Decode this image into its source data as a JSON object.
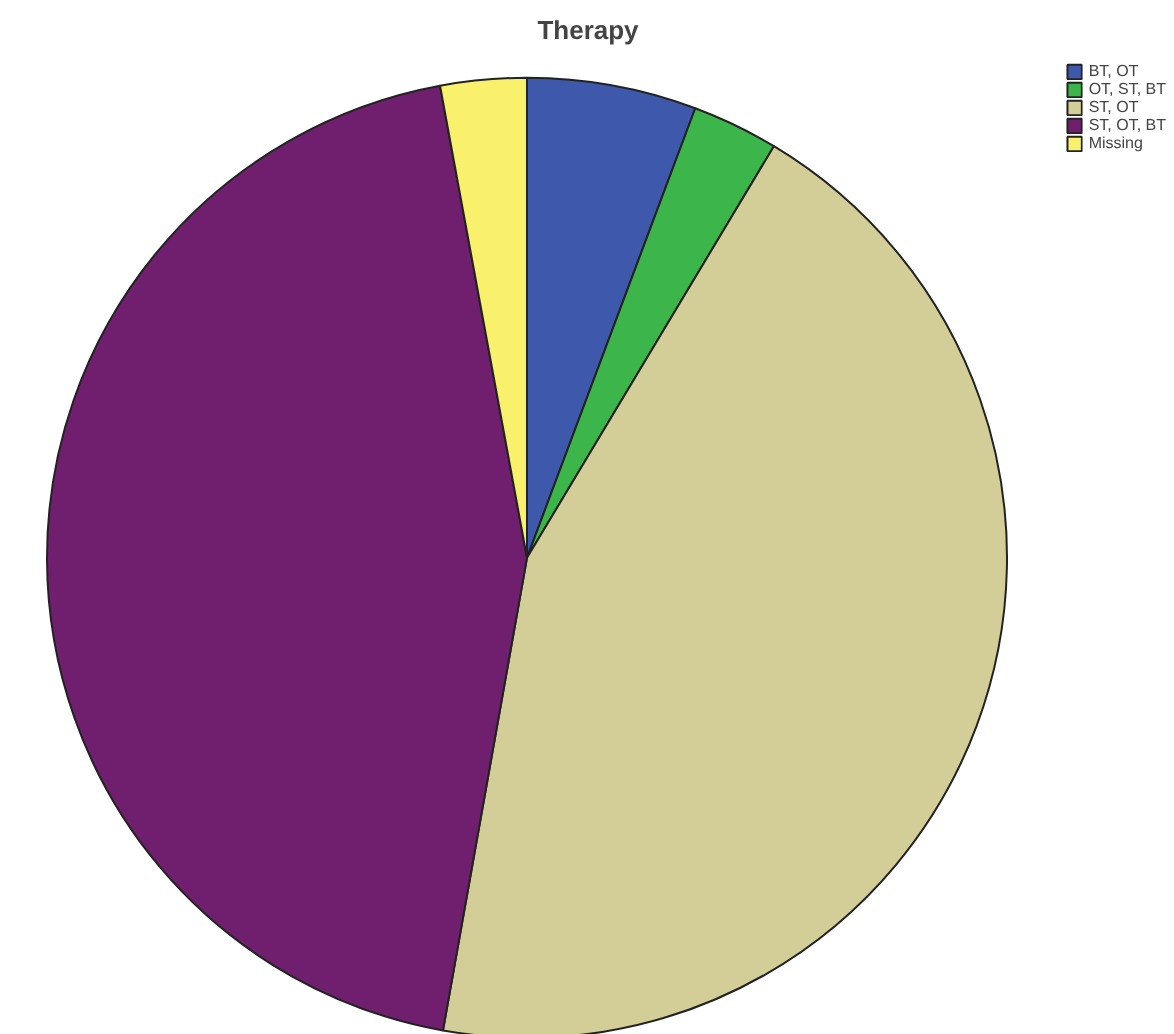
{
  "chart_data": {
    "type": "pie",
    "title": "Therapy",
    "categories": [
      "BT, OT",
      "OT, ST, BT",
      "ST, OT",
      "ST, OT, BT",
      "Missing"
    ],
    "values": [
      5.7,
      2.9,
      44.2,
      44.3,
      2.9
    ],
    "colors": [
      "#3e58ac",
      "#3cb64a",
      "#d3ce97",
      "#701f6e",
      "#f9f06b"
    ],
    "legend": "top right"
  }
}
